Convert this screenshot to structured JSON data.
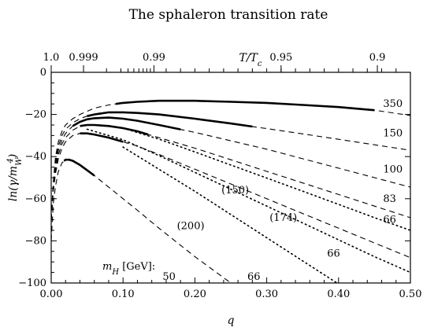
{
  "chart_data": {
    "type": "line",
    "title": "The sphaleron transition rate",
    "xlabel": "q",
    "ylabel": "ln(γ/m_W^4)",
    "top_xlabel": "T/T_c",
    "xlim": [
      0,
      0.5
    ],
    "ylim": [
      -100,
      0
    ],
    "x_ticks": [
      "0.00",
      "0.10",
      "0.20",
      "0.30",
      "0.40",
      "0.50"
    ],
    "y_ticks": [
      "0",
      "−20",
      "−40",
      "−60",
      "−80",
      "−100"
    ],
    "top_ticks": [
      {
        "label": "1.0",
        "q": 0.0
      },
      {
        "label": "0.999",
        "q": 0.045
      },
      {
        "label": "0.99",
        "q": 0.143
      },
      {
        "label": "0.95",
        "q": 0.32
      },
      {
        "label": "0.9",
        "q": 0.454
      }
    ],
    "top_minor_q": [
      0.077,
      0.097,
      0.107,
      0.115,
      0.122,
      0.128,
      0.133,
      0.138
    ],
    "mh_label": "m_H [GeV]:",
    "series": [
      {
        "name": "350",
        "x": [
          0,
          0.003,
          0.006,
          0.01,
          0.015,
          0.02,
          0.03,
          0.04,
          0.05,
          0.06,
          0.08,
          0.1,
          0.12,
          0.15,
          0.2,
          0.25,
          0.3,
          0.35,
          0.4,
          0.45,
          0.5
        ],
        "y": [
          -70,
          -52,
          -40,
          -33,
          -28,
          -25,
          -22,
          -20,
          -18.5,
          -17,
          -15.5,
          -14.5,
          -14,
          -13.5,
          -13.5,
          -14,
          -14.5,
          -15.5,
          -16.5,
          -18,
          -20.5
        ],
        "solid_x": [
          0.09,
          0.45
        ]
      },
      {
        "name": "150",
        "x": [
          0,
          0.003,
          0.006,
          0.01,
          0.015,
          0.02,
          0.03,
          0.04,
          0.05,
          0.06,
          0.08,
          0.1,
          0.12,
          0.15,
          0.2,
          0.25,
          0.3,
          0.35,
          0.4,
          0.45,
          0.5
        ],
        "y": [
          -70,
          -53,
          -42,
          -35,
          -30,
          -27,
          -24,
          -22,
          -20.8,
          -20,
          -19,
          -19,
          -19.3,
          -20,
          -22,
          -24.3,
          -26.7,
          -29.2,
          -31.8,
          -34.4,
          -37
        ],
        "solid_x": [
          0.05,
          0.28
        ]
      },
      {
        "name": "100",
        "x": [
          0,
          0.003,
          0.006,
          0.01,
          0.015,
          0.02,
          0.03,
          0.04,
          0.05,
          0.06,
          0.08,
          0.1,
          0.12,
          0.15,
          0.2,
          0.25,
          0.3,
          0.35,
          0.4,
          0.45,
          0.5
        ],
        "y": [
          -70,
          -54,
          -44,
          -37,
          -32,
          -29,
          -25.5,
          -23.5,
          -22.3,
          -21.8,
          -21.5,
          -22,
          -23,
          -25,
          -28.5,
          -32.5,
          -36.5,
          -41,
          -45.5,
          -50,
          -54.5
        ],
        "solid_x": [
          0.03,
          0.18
        ]
      },
      {
        "name": "83",
        "x": [
          0,
          0.003,
          0.006,
          0.01,
          0.015,
          0.02,
          0.03,
          0.04,
          0.05,
          0.06,
          0.08,
          0.1,
          0.12,
          0.15,
          0.2,
          0.25,
          0.3,
          0.35,
          0.4,
          0.45,
          0.5
        ],
        "y": [
          -70,
          -55,
          -46,
          -39,
          -34,
          -31,
          -27.5,
          -25.5,
          -25,
          -25,
          -25.5,
          -26.5,
          -28,
          -31,
          -36,
          -41.5,
          -47,
          -52.5,
          -58,
          -63.5,
          -69
        ],
        "solid_x": [
          0.04,
          0.135
        ]
      },
      {
        "name": "66",
        "x": [
          0,
          0.003,
          0.006,
          0.01,
          0.015,
          0.02,
          0.03,
          0.04,
          0.05,
          0.06,
          0.08,
          0.1,
          0.12,
          0.15,
          0.2,
          0.25,
          0.3,
          0.35,
          0.4,
          0.45,
          0.5
        ],
        "y": [
          -70,
          -56,
          -48,
          -41,
          -36,
          -33,
          -30,
          -29,
          -29,
          -29.5,
          -31,
          -33,
          -35,
          -39,
          -46,
          -53,
          -60,
          -67,
          -74,
          -81,
          -88
        ],
        "solid_x": [
          0.04,
          0.1
        ]
      },
      {
        "name": "50",
        "x": [
          0,
          0.003,
          0.006,
          0.01,
          0.015,
          0.02,
          0.025,
          0.03,
          0.04,
          0.05,
          0.06,
          0.08,
          0.1,
          0.12,
          0.15,
          0.2,
          0.25,
          0.28
        ],
        "y": [
          -80,
          -62,
          -54,
          -47,
          -43,
          -41.5,
          -41.5,
          -42,
          -44,
          -46.5,
          -49,
          -54.5,
          -60,
          -65.5,
          -74,
          -87.5,
          -100,
          -107
        ],
        "solid_x": [
          0.018,
          0.06
        ]
      },
      {
        "name": "(150)",
        "x": [
          0.1,
          0.15,
          0.2,
          0.25,
          0.3,
          0.35,
          0.4,
          0.45,
          0.5
        ],
        "y": [
          -26.5,
          -31.7,
          -37.8,
          -44,
          -50.2,
          -56.4,
          -62.7,
          -69,
          -75
        ],
        "solid_x": []
      },
      {
        "name": "(174)",
        "x": [
          0.05,
          0.1,
          0.15,
          0.2,
          0.25,
          0.3,
          0.35,
          0.4,
          0.45,
          0.5
        ],
        "y": [
          -27,
          -32,
          -39.5,
          -47.5,
          -55.5,
          -63.5,
          -71.5,
          -79.5,
          -87.5,
          -95
        ],
        "solid_x": []
      },
      {
        "name": "(200)",
        "x": [
          0.1,
          0.15,
          0.2,
          0.25,
          0.3,
          0.35,
          0.4
        ],
        "y": [
          -35.5,
          -46,
          -56.5,
          -67.5,
          -78.5,
          -89.5,
          -100.5
        ],
        "solid_x": []
      }
    ],
    "curve_labels": [
      {
        "text": "350",
        "x": 0.462,
        "y": -15,
        "series": "350"
      },
      {
        "text": "150",
        "x": 0.462,
        "y": -29,
        "series": "150"
      },
      {
        "text": "100",
        "x": 0.462,
        "y": -46,
        "series": "100"
      },
      {
        "text": "83",
        "x": 0.462,
        "y": -60,
        "series": "83"
      },
      {
        "text": "66",
        "x": 0.462,
        "y": -70,
        "series": "(150)"
      },
      {
        "text": "66",
        "x": 0.384,
        "y": -86,
        "series": "(174)"
      },
      {
        "text": "66",
        "x": 0.273,
        "y": -97,
        "series": "(200)"
      },
      {
        "text": "(150)",
        "x": 0.237,
        "y": -56,
        "series": "(150)"
      },
      {
        "text": "(174)",
        "x": 0.304,
        "y": -69,
        "series": "(174)"
      },
      {
        "text": "(200)",
        "x": 0.175,
        "y": -73,
        "series": "(200)"
      },
      {
        "text": "50",
        "x": 0.155,
        "y": -97,
        "series": "50"
      }
    ]
  }
}
